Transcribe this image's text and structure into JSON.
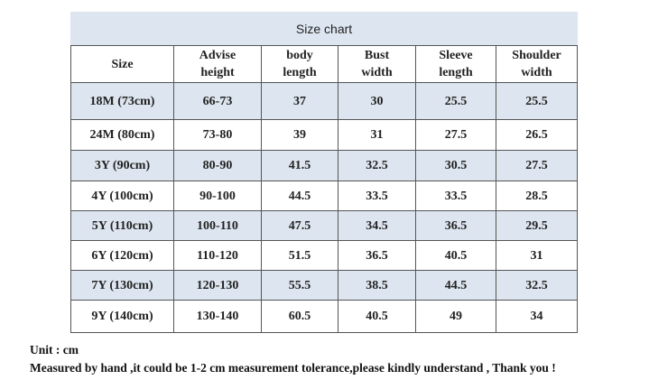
{
  "table": {
    "title": "Size chart",
    "header": [
      "Size",
      "Advise\nheight",
      "body\nlength",
      "Bust\nwidth",
      "Sleeve\nlength",
      "Shoulder\nwidth"
    ],
    "rows": [
      [
        "18M (73cm)",
        "66-73",
        "37",
        "30",
        "25.5",
        "25.5"
      ],
      [
        "24M (80cm)",
        "73-80",
        "39",
        "31",
        "27.5",
        "26.5"
      ],
      [
        "3Y (90cm)",
        "80-90",
        "41.5",
        "32.5",
        "30.5",
        "27.5"
      ],
      [
        "4Y (100cm)",
        "90-100",
        "44.5",
        "33.5",
        "33.5",
        "28.5"
      ],
      [
        "5Y (110cm)",
        "100-110",
        "47.5",
        "34.5",
        "36.5",
        "29.5"
      ],
      [
        "6Y (120cm)",
        "110-120",
        "51.5",
        "36.5",
        "40.5",
        "31"
      ],
      [
        "7Y (130cm)",
        "120-130",
        "55.5",
        "38.5",
        "44.5",
        "32.5"
      ],
      [
        "9Y (140cm)",
        "130-140",
        "60.5",
        "40.5",
        "49",
        "34"
      ]
    ]
  },
  "notes": [
    "Unit : cm",
    "Measured by hand ,it could be 1-2 cm measurement tolerance,please kindly understand , Thank you !"
  ]
}
